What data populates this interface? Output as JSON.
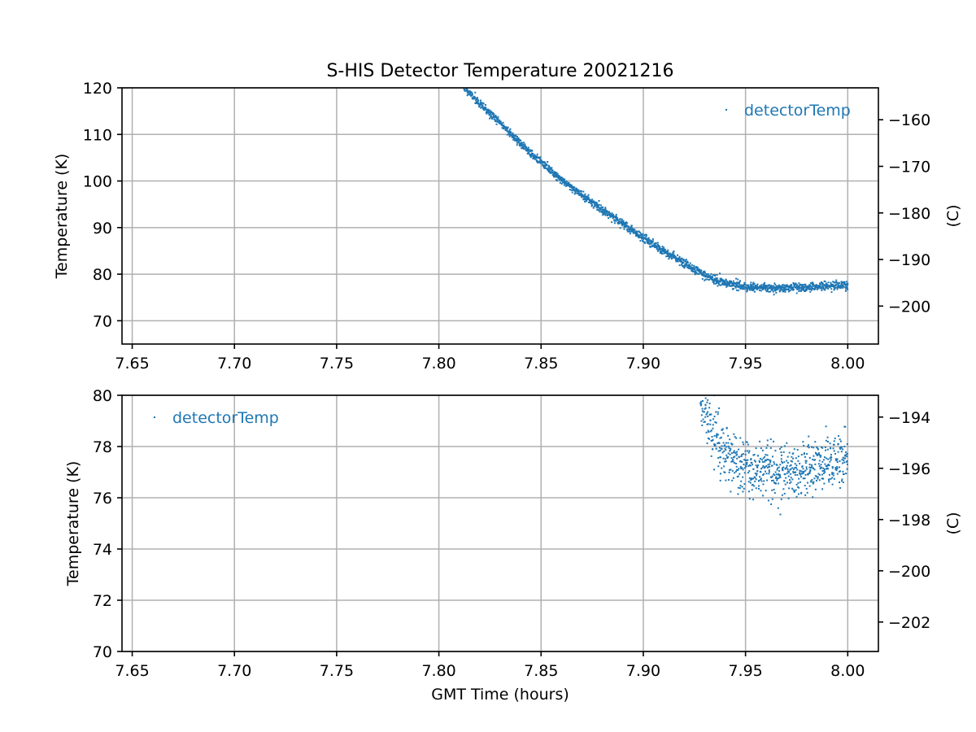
{
  "figure": {
    "title": "S-HIS Detector Temperature 20021216",
    "xlabel": "GMT Time (hours)"
  },
  "colors": {
    "series": "#1f77b4",
    "grid": "#b0b0b0"
  },
  "chart_data": [
    {
      "type": "scatter",
      "panel": "top",
      "title": "S-HIS Detector Temperature 20021216",
      "xlabel": "",
      "ylabel": "Temperature (K)",
      "ylabel_right": "(C)",
      "xlim": [
        7.645,
        8.015
      ],
      "ylim": [
        65,
        120
      ],
      "ylim_right": [
        -208.15,
        -153.15
      ],
      "x_ticks": [
        "7.65",
        "7.70",
        "7.75",
        "7.80",
        "7.85",
        "7.90",
        "7.95",
        "8.00"
      ],
      "x_tick_values": [
        7.65,
        7.7,
        7.75,
        7.8,
        7.85,
        7.9,
        7.95,
        8.0
      ],
      "y_ticks": [
        "70",
        "80",
        "90",
        "100",
        "110",
        "120"
      ],
      "y_tick_values": [
        70,
        80,
        90,
        100,
        110,
        120
      ],
      "y_ticks_right": [
        "−200",
        "−190",
        "−180",
        "−170",
        "−160"
      ],
      "y_tick_values_right": [
        -200,
        -190,
        -180,
        -170,
        -160
      ],
      "grid": true,
      "legend": {
        "position": "top-right",
        "entries": [
          "detectorTemp"
        ]
      },
      "series": [
        {
          "name": "detectorTemp",
          "x": [
            7.812,
            7.82,
            7.83,
            7.84,
            7.85,
            7.86,
            7.87,
            7.88,
            7.89,
            7.9,
            7.91,
            7.92,
            7.93,
            7.94,
            7.95,
            7.96,
            7.97,
            7.98,
            7.99,
            8.0
          ],
          "values": [
            120.5,
            116.5,
            112.5,
            108.0,
            104.0,
            100.3,
            97.0,
            93.8,
            90.8,
            87.8,
            85.0,
            82.5,
            79.8,
            78.0,
            77.3,
            77.1,
            77.0,
            77.2,
            77.4,
            77.6
          ]
        }
      ]
    },
    {
      "type": "scatter",
      "panel": "bottom",
      "title": "",
      "xlabel": "GMT Time (hours)",
      "ylabel": "Temperature (K)",
      "ylabel_right": "(C)",
      "xlim": [
        7.645,
        8.015
      ],
      "ylim": [
        70,
        80
      ],
      "ylim_right": [
        -203.15,
        -193.15
      ],
      "x_ticks": [
        "7.65",
        "7.70",
        "7.75",
        "7.80",
        "7.85",
        "7.90",
        "7.95",
        "8.00"
      ],
      "x_tick_values": [
        7.65,
        7.7,
        7.75,
        7.8,
        7.85,
        7.9,
        7.95,
        8.0
      ],
      "y_ticks": [
        "70",
        "72",
        "74",
        "76",
        "78",
        "80"
      ],
      "y_tick_values": [
        70,
        72,
        74,
        76,
        78,
        80
      ],
      "y_ticks_right": [
        "−202",
        "−200",
        "−198",
        "−196",
        "−194"
      ],
      "y_tick_values_right": [
        -202,
        -200,
        -198,
        -196,
        -194
      ],
      "grid": true,
      "legend": {
        "position": "top-left",
        "entries": [
          "detectorTemp"
        ]
      },
      "series": [
        {
          "name": "detectorTemp",
          "x": [
            7.928,
            7.932,
            7.936,
            7.94,
            7.945,
            7.95,
            7.955,
            7.96,
            7.965,
            7.97,
            7.975,
            7.98,
            7.985,
            7.99,
            7.995,
            8.0
          ],
          "values": [
            79.8,
            79.0,
            78.3,
            77.8,
            77.4,
            77.2,
            77.1,
            77.0,
            77.0,
            77.0,
            77.1,
            77.2,
            77.3,
            77.4,
            77.5,
            77.6
          ]
        }
      ]
    }
  ]
}
